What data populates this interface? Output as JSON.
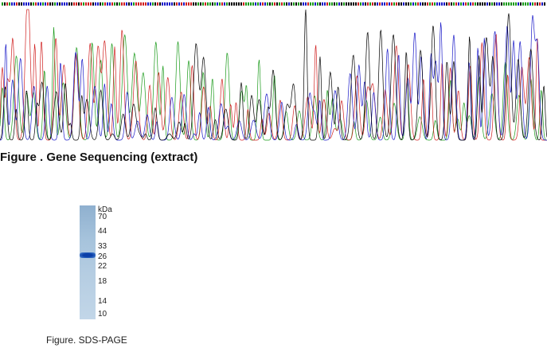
{
  "sequencing": {
    "caption": "Figure . Gene Sequencing (extract)"
  },
  "sds_page": {
    "unit": "kDa",
    "markers": [
      "70",
      "44",
      "33",
      "26",
      "22",
      "18",
      "14",
      "10"
    ],
    "caption": "Figure. SDS-PAGE"
  }
}
